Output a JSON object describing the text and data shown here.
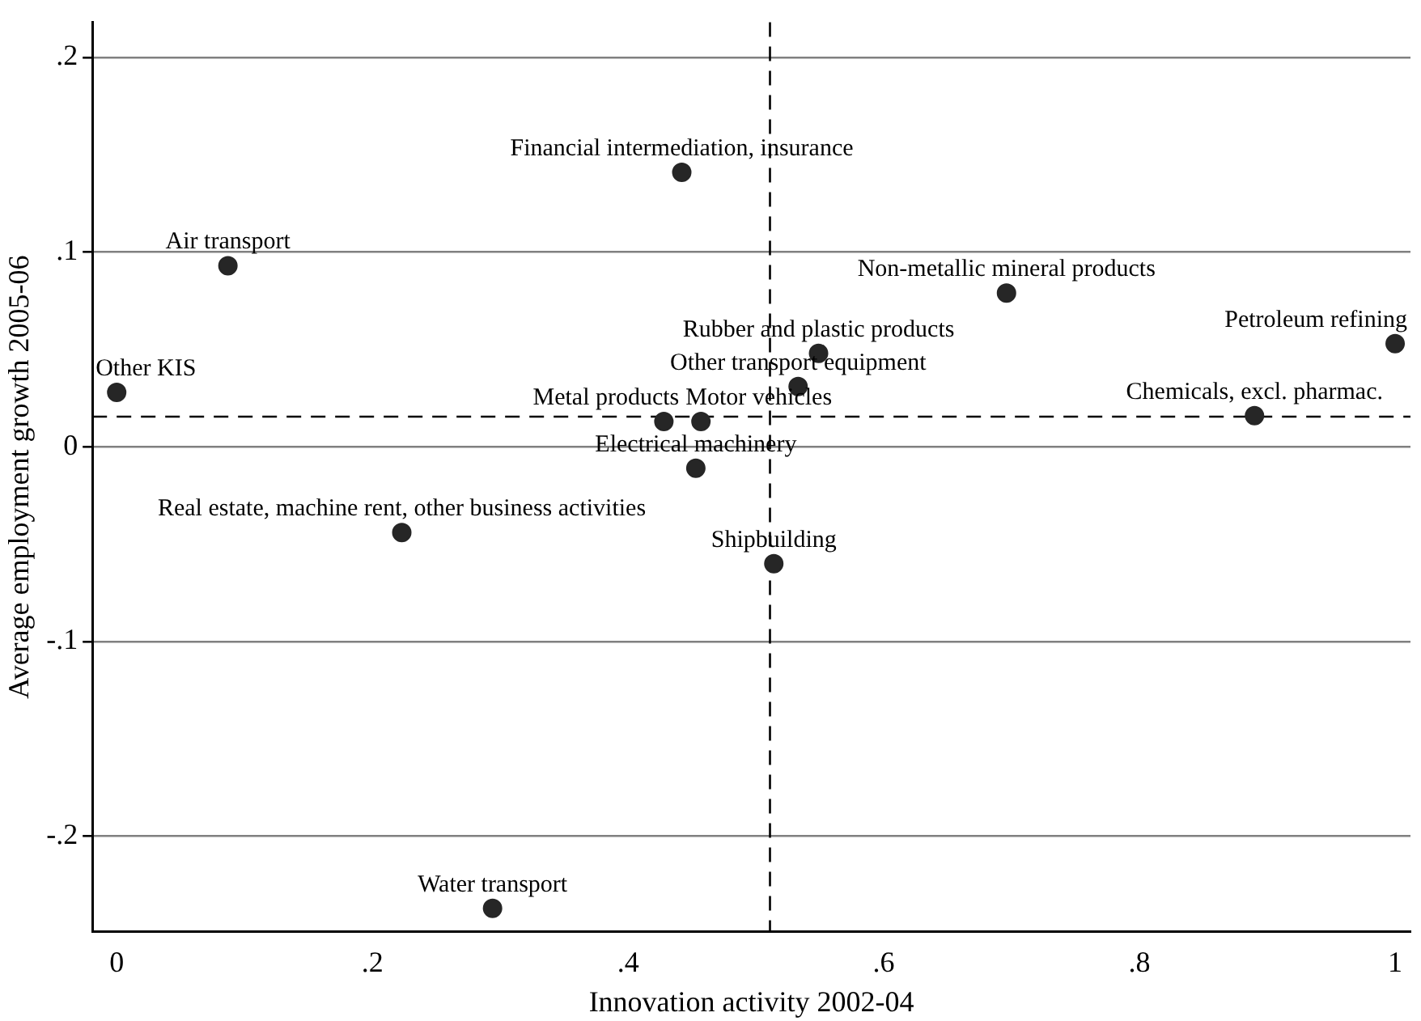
{
  "chart_data": {
    "type": "scatter",
    "xlabel": "Innovation activity 2002-04",
    "ylabel": "Average employment growth 2005-06",
    "x": [
      0,
      0.087,
      0.442,
      0.696,
      1.0,
      0.549,
      0.533,
      0.428,
      0.457,
      0.453,
      0.89,
      0.223,
      0.514,
      0.294
    ],
    "values": [
      0.028,
      0.093,
      0.141,
      0.079,
      0.053,
      0.048,
      0.031,
      0.013,
      0.013,
      -0.011,
      0.016,
      -0.044,
      -0.06,
      -0.237
    ],
    "color": "#262626",
    "marker": "circle",
    "xlim": [
      -0.019,
      1.012
    ],
    "ylim": [
      -0.249,
      0.218
    ],
    "xticks": [
      {
        "value": 0,
        "label": "0"
      },
      {
        "value": 0.2,
        "label": ".2"
      },
      {
        "value": 0.4,
        "label": ".4"
      },
      {
        "value": 0.6,
        "label": ".6"
      },
      {
        "value": 0.8,
        "label": ".8"
      },
      {
        "value": 1,
        "label": "1"
      }
    ],
    "yticks": [
      {
        "value": -0.2,
        "label": "-.2"
      },
      {
        "value": -0.1,
        "label": "-.1"
      },
      {
        "value": 0,
        "label": "0"
      },
      {
        "value": 0.1,
        "label": ".1"
      },
      {
        "value": 0.2,
        "label": ".2"
      }
    ],
    "grid": "y",
    "legend": false,
    "ref_lines": [
      {
        "axis": "x",
        "value": 0.511,
        "line_style": "dashed"
      },
      {
        "axis": "y",
        "value": 0.0155,
        "line_style": "dashed"
      }
    ],
    "annotations": [
      {
        "text": "Other KIS",
        "x": 0,
        "y": 0.028
      },
      {
        "text": "Air transport",
        "x": 0.087,
        "y": 0.093
      },
      {
        "text": "Financial intermediation, insurance",
        "x": 0.442,
        "y": 0.141
      },
      {
        "text": "Non-metallic mineral products",
        "x": 0.696,
        "y": 0.079
      },
      {
        "text": "Petroleum refining",
        "x": 1.0,
        "y": 0.053
      },
      {
        "text": "Rubber and plastic products",
        "x": 0.549,
        "y": 0.048
      },
      {
        "text": "Other transport equipment",
        "x": 0.533,
        "y": 0.031
      },
      {
        "text": "Metal products",
        "x": 0.428,
        "y": 0.013
      },
      {
        "text": "Motor vehicles",
        "x": 0.457,
        "y": 0.013
      },
      {
        "text": "Electrical machinery",
        "x": 0.453,
        "y": -0.011
      },
      {
        "text": "Chemicals, excl. pharmac.",
        "x": 0.89,
        "y": 0.016
      },
      {
        "text": "Real estate, machine rent, other business activities",
        "x": 0.223,
        "y": -0.044
      },
      {
        "text": "Shipbuilding",
        "x": 0.514,
        "y": -0.06
      },
      {
        "text": "Water transport",
        "x": 0.294,
        "y": -0.237
      }
    ]
  }
}
